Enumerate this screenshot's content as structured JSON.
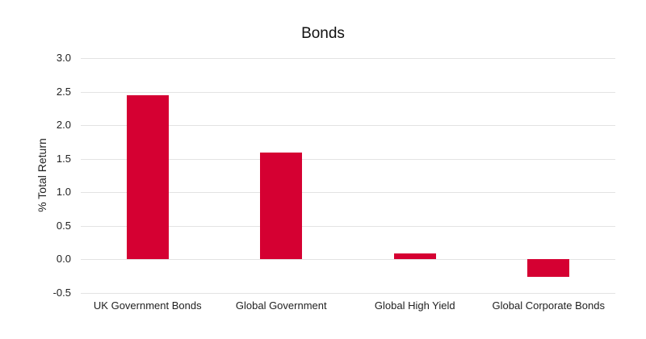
{
  "chart_data": {
    "type": "bar",
    "title": "Bonds",
    "xlabel": "",
    "ylabel": "% Total Return",
    "categories": [
      "UK Government Bonds",
      "Global Government",
      "Global High Yield",
      "Global Corporate Bonds"
    ],
    "values": [
      2.45,
      1.59,
      0.09,
      -0.26
    ],
    "ylim": [
      -0.5,
      3.0
    ],
    "yticks": [
      "3.0",
      "2.5",
      "2.0",
      "1.5",
      "1.0",
      "0.5",
      "0.0",
      "-0.5"
    ],
    "grid": true,
    "legend": null,
    "bar_color": "#d50032"
  }
}
